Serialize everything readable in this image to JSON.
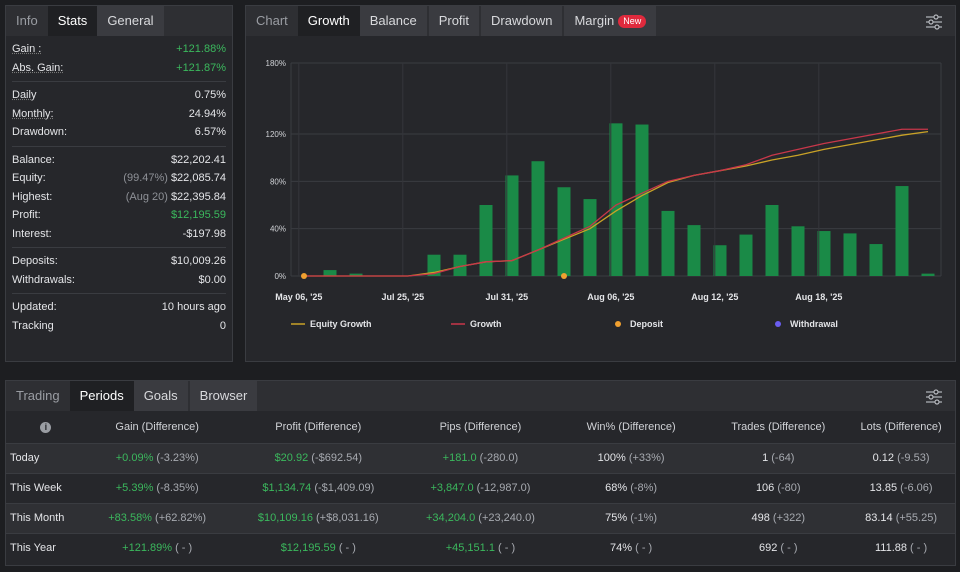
{
  "stats_panel": {
    "tabs": [
      "Info",
      "Stats",
      "General"
    ],
    "active_tab": "Stats",
    "groups": [
      [
        {
          "label": "Gain :",
          "value": "+121.88%",
          "green": true,
          "sub": ""
        },
        {
          "label": "Abs. Gain:",
          "value": "+121.87%",
          "green": true,
          "sub": ""
        }
      ],
      [
        {
          "label": "Daily",
          "value": "0.75%",
          "green": false,
          "sub": ""
        },
        {
          "label": "Monthly:",
          "value": "24.94%",
          "green": false,
          "sub": ""
        },
        {
          "label": "Drawdown:",
          "value": "6.57%",
          "green": false,
          "sub": ""
        }
      ],
      [
        {
          "label": "Balance:",
          "value": "$22,202.41",
          "green": false,
          "sub": ""
        },
        {
          "label": "Equity:",
          "value": "$22,085.74",
          "green": false,
          "sub": "(99.47%)"
        },
        {
          "label": "Highest:",
          "value": "$22,395.84",
          "green": false,
          "sub": "(Aug 20)"
        },
        {
          "label": "Profit:",
          "value": "$12,195.59",
          "green": true,
          "sub": ""
        },
        {
          "label": "Interest:",
          "value": "-$197.98",
          "green": false,
          "sub": ""
        }
      ],
      [
        {
          "label": "Deposits:",
          "value": "$10,009.26",
          "green": false,
          "sub": ""
        },
        {
          "label": "Withdrawals:",
          "value": "$0.00",
          "green": false,
          "sub": ""
        }
      ],
      [
        {
          "label": "Updated:",
          "value": "10 hours ago",
          "green": false,
          "sub": ""
        },
        {
          "label": "Tracking",
          "value": "0",
          "green": false,
          "sub": ""
        }
      ]
    ]
  },
  "chart_panel": {
    "tabs": [
      "Chart",
      "Growth",
      "Balance",
      "Profit",
      "Drawdown",
      "Margin"
    ],
    "active_tab": "Growth",
    "margin_badge": "New",
    "settings_icon": "sliders-icon"
  },
  "chart_data": {
    "type": "bar",
    "ylim": [
      0,
      180
    ],
    "yticks": [
      "0%",
      "40%",
      "80%",
      "120%",
      "180%"
    ],
    "ytick_values": [
      0,
      40,
      80,
      120,
      180
    ],
    "xtick_labels": [
      "May 06, '25",
      "Jul 25, '25",
      "Jul 31, '25",
      "Aug 06, '25",
      "Aug 12, '25",
      "Aug 18, '25"
    ],
    "bars": [
      0,
      5,
      2,
      0,
      0,
      18,
      18,
      60,
      85,
      97,
      75,
      65,
      129,
      128,
      55,
      43,
      26,
      35,
      60,
      42,
      38,
      36,
      27,
      76,
      2
    ],
    "series": [
      {
        "name": "Equity Growth",
        "color": "#c9a227",
        "values": [
          0,
          0,
          0,
          0,
          0,
          3,
          8,
          12,
          13,
          22,
          31,
          40,
          55,
          68,
          79,
          85,
          89,
          93,
          98,
          102,
          107,
          111,
          115,
          119,
          122
        ]
      },
      {
        "name": "Growth",
        "color": "#c8374a",
        "values": [
          0,
          0,
          0,
          0,
          0,
          2,
          8,
          12,
          13,
          22,
          32,
          42,
          60,
          70,
          80,
          85,
          89,
          94,
          102,
          107,
          112,
          116,
          120,
          124,
          124
        ]
      }
    ],
    "legend": [
      {
        "name": "Equity Growth",
        "kind": "line",
        "color": "#c9a227"
      },
      {
        "name": "Growth",
        "kind": "line",
        "color": "#c8374a"
      },
      {
        "name": "Deposit",
        "kind": "dot",
        "color": "#f0a030"
      },
      {
        "name": "Withdrawal",
        "kind": "dot",
        "color": "#6a5df0"
      }
    ],
    "deposit_points": [
      0,
      10
    ],
    "bar_color": "#1a8a47",
    "grid": true,
    "legend_position": "bottom"
  },
  "periods_panel": {
    "tabs": [
      "Trading",
      "Periods",
      "Goals",
      "Browser"
    ],
    "active_tab": "Periods",
    "info_icon": "info-icon",
    "columns": [
      "Gain (Difference)",
      "Profit (Difference)",
      "Pips (Difference)",
      "Win% (Difference)",
      "Trades (Difference)",
      "Lots (Difference)"
    ],
    "rows": [
      {
        "label": "Today",
        "cells": [
          [
            "+0.09%",
            "(-3.23%)"
          ],
          [
            "$20.92",
            "(-$692.54)"
          ],
          [
            "+181.0",
            "(-280.0)"
          ],
          [
            "100%",
            "(+33%)"
          ],
          [
            "1",
            "(-64)"
          ],
          [
            "0.12",
            "(-9.53)"
          ]
        ]
      },
      {
        "label": "This Week",
        "cells": [
          [
            "+5.39%",
            "(-8.35%)"
          ],
          [
            "$1,134.74",
            "(-$1,409.09)"
          ],
          [
            "+3,847.0",
            "(-12,987.0)"
          ],
          [
            "68%",
            "(-8%)"
          ],
          [
            "106",
            "(-80)"
          ],
          [
            "13.85",
            "(-6.06)"
          ]
        ]
      },
      {
        "label": "This Month",
        "cells": [
          [
            "+83.58%",
            "(+62.82%)"
          ],
          [
            "$10,109.16",
            "(+$8,031.16)"
          ],
          [
            "+34,204.0",
            "(+23,240.0)"
          ],
          [
            "75%",
            "(-1%)"
          ],
          [
            "498",
            "(+322)"
          ],
          [
            "83.14",
            "(+55.25)"
          ]
        ]
      },
      {
        "label": "This Year",
        "cells": [
          [
            "+121.89%",
            "( - )"
          ],
          [
            "$12,195.59",
            "( - )"
          ],
          [
            "+45,151.1",
            "( - )"
          ],
          [
            "74%",
            "( - )"
          ],
          [
            "692",
            "( - )"
          ],
          [
            "111.88",
            "( - )"
          ]
        ]
      }
    ]
  }
}
